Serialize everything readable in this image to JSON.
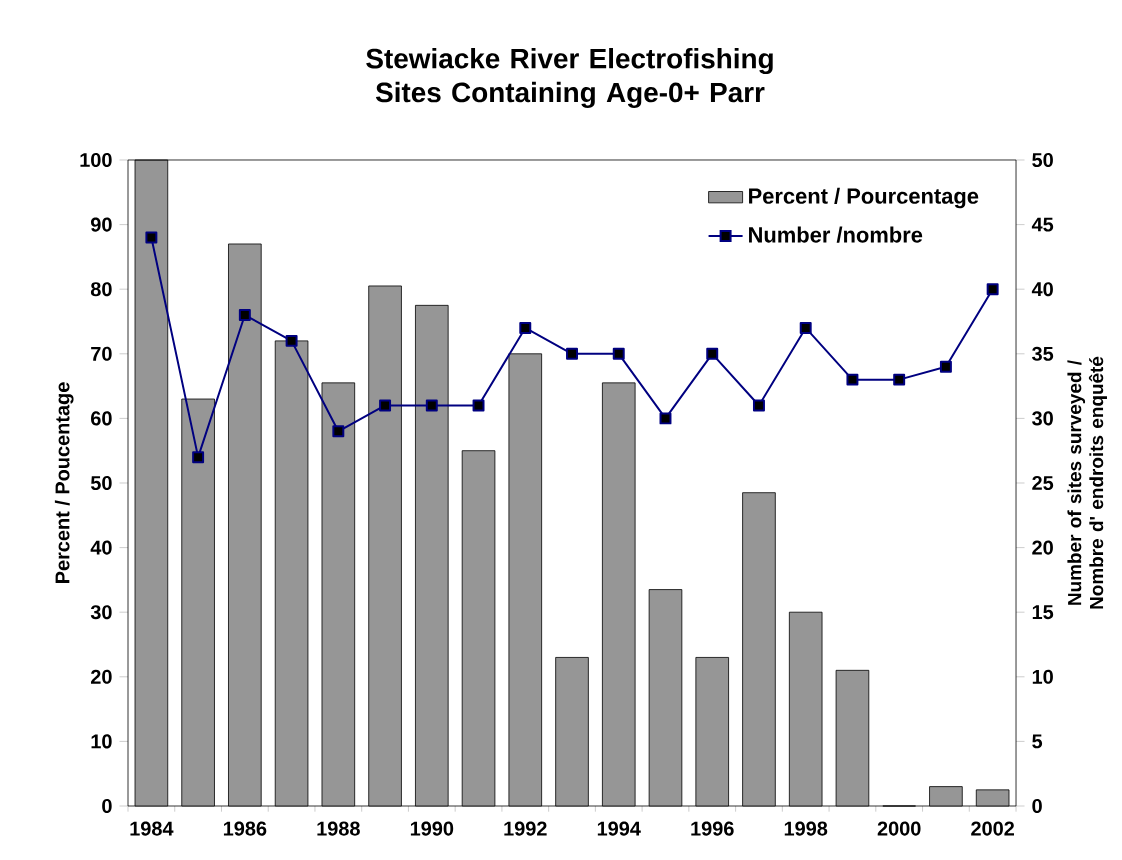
{
  "chart_data": {
    "type": "bar",
    "title": "Stewiacke River Electrofishing Sites Containing Age-0+ Parr",
    "categories": [
      "1984",
      null,
      "1986",
      null,
      "1988",
      null,
      "1990",
      null,
      "1992",
      null,
      "1994",
      null,
      "1996",
      null,
      "1998",
      null,
      "2000",
      null,
      "2002"
    ],
    "series": [
      {
        "name": "Percent / Pourcentage",
        "color": "#969696",
        "values": [
          100,
          63,
          87,
          72,
          65.5,
          80.5,
          77.5,
          55,
          70,
          23,
          65.5,
          33.5,
          23,
          48.5,
          30,
          21,
          0,
          3,
          2.5
        ]
      },
      {
        "name": "Number /nombre",
        "type": "line",
        "axis": "y2",
        "color": "#000080",
        "values": [
          44,
          27,
          38,
          36,
          29,
          31,
          31,
          31,
          37,
          35,
          35,
          30,
          35,
          31,
          37,
          33,
          33,
          34,
          40
        ]
      }
    ],
    "ylabel": "Percent / Poucentage",
    "y2label": "Number of sites surveyed / Nombre d' endroits enquêté",
    "ylim": [
      0,
      100
    ],
    "yticks": [
      0,
      10,
      20,
      30,
      40,
      50,
      60,
      70,
      80,
      90,
      100
    ],
    "y2lim": [
      0,
      50
    ],
    "y2ticks": [
      0,
      5,
      10,
      15,
      20,
      25,
      30,
      35,
      40,
      45,
      50
    ],
    "legend": "top right",
    "marker": "square",
    "line_style": "solid",
    "grid": false
  }
}
